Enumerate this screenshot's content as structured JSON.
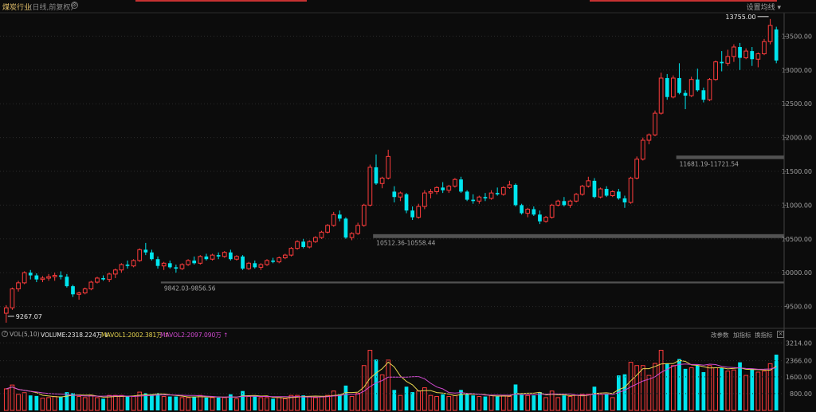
{
  "header": {
    "title": "煤炭行业",
    "subtitle": "(日线,前复权)",
    "settings_icon": "gear-icon",
    "set_ma_label": "设置均线 ▾"
  },
  "price_annotations": {
    "high": "13755.00",
    "low": "9267.07",
    "gap1": "9842.03-9856.56",
    "gap2": "10512.36-10558.44",
    "gap3": "11681.19-11721.54"
  },
  "volume_panel": {
    "name": "VOL(5,10)",
    "volume": "VOLUME:2318.224万 ↓",
    "mavol1": "MAVOL1:2002.381万 ↑",
    "mavol2": "MAVOL2:2097.090万 ↑",
    "btn_params": "改参数",
    "btn_add": "加指标",
    "btn_switch": "换指标",
    "close": "×",
    "help": "?"
  },
  "colors": {
    "up": "#ff3c3c",
    "down": "#00e5ee",
    "ma1": "#e8d650",
    "ma2": "#d24ad2",
    "grid": "#2a2a2a"
  },
  "chart_data": [
    {
      "type": "candlestick",
      "title": "煤炭行业",
      "y_ticks": [
        13500,
        13000,
        12500,
        12000,
        11500,
        11000,
        10500,
        10000,
        9500
      ],
      "ylim": [
        9200,
        13800
      ],
      "gap_zones": [
        [
          9842.03,
          9856.56
        ],
        [
          10512.36,
          10558.44
        ],
        [
          11681.19,
          11721.54
        ]
      ],
      "ohlc": [
        [
          9400,
          9520,
          9260,
          9480
        ],
        [
          9480,
          9780,
          9450,
          9760
        ],
        [
          9760,
          9880,
          9720,
          9850
        ],
        [
          9850,
          10020,
          9830,
          10000
        ],
        [
          10000,
          10040,
          9900,
          9960
        ],
        [
          9960,
          9990,
          9860,
          9900
        ],
        [
          9900,
          9950,
          9860,
          9920
        ],
        [
          9920,
          9980,
          9880,
          9940
        ],
        [
          9940,
          10000,
          9880,
          9960
        ],
        [
          9960,
          10020,
          9900,
          9940
        ],
        [
          9940,
          9980,
          9780,
          9800
        ],
        [
          9800,
          9820,
          9640,
          9680
        ],
        [
          9680,
          9720,
          9600,
          9700
        ],
        [
          9700,
          9780,
          9680,
          9760
        ],
        [
          9760,
          9880,
          9740,
          9860
        ],
        [
          9860,
          9940,
          9840,
          9920
        ],
        [
          9920,
          9960,
          9880,
          9900
        ],
        [
          9900,
          10000,
          9860,
          9980
        ],
        [
          9980,
          10060,
          9920,
          10040
        ],
        [
          10040,
          10140,
          10000,
          10120
        ],
        [
          10120,
          10180,
          10060,
          10100
        ],
        [
          10100,
          10200,
          10080,
          10180
        ],
        [
          10180,
          10360,
          10160,
          10340
        ],
        [
          10340,
          10440,
          10260,
          10300
        ],
        [
          10300,
          10340,
          10180,
          10200
        ],
        [
          10200,
          10240,
          10060,
          10100
        ],
        [
          10100,
          10160,
          10040,
          10140
        ],
        [
          10140,
          10180,
          10060,
          10080
        ],
        [
          10080,
          10120,
          10000,
          10060
        ],
        [
          10060,
          10140,
          10040,
          10120
        ],
        [
          10120,
          10200,
          10100,
          10180
        ],
        [
          10180,
          10240,
          10120,
          10140
        ],
        [
          10140,
          10260,
          10120,
          10240
        ],
        [
          10240,
          10280,
          10180,
          10200
        ],
        [
          10200,
          10280,
          10180,
          10260
        ],
        [
          10260,
          10300,
          10200,
          10240
        ],
        [
          10240,
          10320,
          10220,
          10300
        ],
        [
          10300,
          10340,
          10180,
          10200
        ],
        [
          10200,
          10260,
          10180,
          10240
        ],
        [
          10240,
          10260,
          10040,
          10060
        ],
        [
          10060,
          10160,
          10040,
          10140
        ],
        [
          10140,
          10180,
          10060,
          10080
        ],
        [
          10080,
          10140,
          10040,
          10120
        ],
        [
          10120,
          10200,
          10100,
          10180
        ],
        [
          10180,
          10220,
          10140,
          10160
        ],
        [
          10160,
          10240,
          10140,
          10220
        ],
        [
          10220,
          10280,
          10200,
          10260
        ],
        [
          10260,
          10380,
          10240,
          10360
        ],
        [
          10360,
          10480,
          10340,
          10460
        ],
        [
          10460,
          10500,
          10360,
          10380
        ],
        [
          10380,
          10480,
          10360,
          10460
        ],
        [
          10460,
          10540,
          10440,
          10520
        ],
        [
          10520,
          10620,
          10500,
          10600
        ],
        [
          10600,
          10720,
          10580,
          10700
        ],
        [
          10700,
          10900,
          10680,
          10860
        ],
        [
          10860,
          10920,
          10760,
          10800
        ],
        [
          10800,
          10820,
          10500,
          10520
        ],
        [
          10520,
          10600,
          10480,
          10580
        ],
        [
          10580,
          10740,
          10560,
          10700
        ],
        [
          10700,
          11020,
          10680,
          11000
        ],
        [
          11000,
          11600,
          10980,
          11560
        ],
        [
          11560,
          11750,
          11300,
          11320
        ],
        [
          11320,
          11420,
          11250,
          11400
        ],
        [
          11400,
          11820,
          11380,
          11720
        ],
        [
          11200,
          11280,
          11040,
          11120
        ],
        [
          11120,
          11200,
          11060,
          11180
        ],
        [
          11160,
          11180,
          10880,
          10920
        ],
        [
          10920,
          10980,
          10780,
          10820
        ],
        [
          10820,
          11020,
          10800,
          10980
        ],
        [
          10980,
          11220,
          10940,
          11180
        ],
        [
          11180,
          11240,
          11100,
          11200
        ],
        [
          11200,
          11280,
          11160,
          11260
        ],
        [
          11260,
          11340,
          11180,
          11220
        ],
        [
          11220,
          11300,
          11180,
          11280
        ],
        [
          11280,
          11400,
          11260,
          11380
        ],
        [
          11380,
          11420,
          11180,
          11200
        ],
        [
          11200,
          11220,
          11060,
          11080
        ],
        [
          11080,
          11160,
          11020,
          11060
        ],
        [
          11060,
          11140,
          11020,
          11120
        ],
        [
          11120,
          11180,
          11060,
          11100
        ],
        [
          11100,
          11220,
          11080,
          11180
        ],
        [
          11180,
          11260,
          11140,
          11160
        ],
        [
          11160,
          11280,
          11140,
          11260
        ],
        [
          11260,
          11360,
          11240,
          11300
        ],
        [
          11300,
          11320,
          10980,
          11000
        ],
        [
          11000,
          11020,
          10860,
          10880
        ],
        [
          10880,
          10960,
          10820,
          10940
        ],
        [
          10940,
          10980,
          10840,
          10860
        ],
        [
          10860,
          10920,
          10720,
          10760
        ],
        [
          10760,
          10840,
          10740,
          10820
        ],
        [
          10820,
          11020,
          10800,
          11000
        ],
        [
          11000,
          11080,
          10980,
          11060
        ],
        [
          11060,
          11120,
          10980,
          11000
        ],
        [
          11000,
          11080,
          10960,
          11060
        ],
        [
          11060,
          11180,
          11040,
          11160
        ],
        [
          11160,
          11300,
          11140,
          11280
        ],
        [
          11280,
          11420,
          11260,
          11360
        ],
        [
          11360,
          11400,
          11100,
          11120
        ],
        [
          11120,
          11260,
          11100,
          11240
        ],
        [
          11240,
          11280,
          11120,
          11140
        ],
        [
          11140,
          11220,
          11120,
          11200
        ],
        [
          11200,
          11240,
          11080,
          11100
        ],
        [
          11100,
          11140,
          10960,
          11040
        ],
        [
          11040,
          11420,
          11020,
          11400
        ],
        [
          11400,
          11720,
          11380,
          11680
        ],
        [
          11680,
          12000,
          11660,
          11960
        ],
        [
          11960,
          12060,
          11900,
          12040
        ],
        [
          12040,
          12400,
          12020,
          12360
        ],
        [
          12360,
          12960,
          12340,
          12880
        ],
        [
          12880,
          12940,
          12560,
          12600
        ],
        [
          12600,
          12920,
          12580,
          12880
        ],
        [
          12880,
          13100,
          12640,
          12660
        ],
        [
          12660,
          12700,
          12420,
          12620
        ],
        [
          12620,
          12900,
          12600,
          12860
        ],
        [
          12860,
          13020,
          12680,
          12700
        ],
        [
          12700,
          12740,
          12520,
          12560
        ],
        [
          12560,
          12880,
          12540,
          12860
        ],
        [
          12860,
          13140,
          12840,
          13120
        ],
        [
          13120,
          13280,
          12980,
          13100
        ],
        [
          13100,
          13300,
          13060,
          13200
        ],
        [
          13200,
          13380,
          13120,
          13340
        ],
        [
          13340,
          13400,
          13000,
          13180
        ],
        [
          13180,
          13320,
          13160,
          13280
        ],
        [
          13280,
          13340,
          13060,
          13160
        ],
        [
          13160,
          13260,
          13040,
          13240
        ],
        [
          13240,
          13460,
          13220,
          13420
        ],
        [
          13420,
          13755,
          13380,
          13660
        ],
        [
          13600,
          13640,
          13100,
          13140
        ]
      ]
    },
    {
      "type": "bar",
      "title": "VOL(5,10)",
      "y_ticks": [
        3214.0,
        2366.0,
        1600.0,
        800.0
      ],
      "ylim": [
        0,
        3300
      ],
      "unit": "万",
      "series_names": [
        "VOLUME",
        "MAVOL1",
        "MAVOL2"
      ]
    }
  ]
}
